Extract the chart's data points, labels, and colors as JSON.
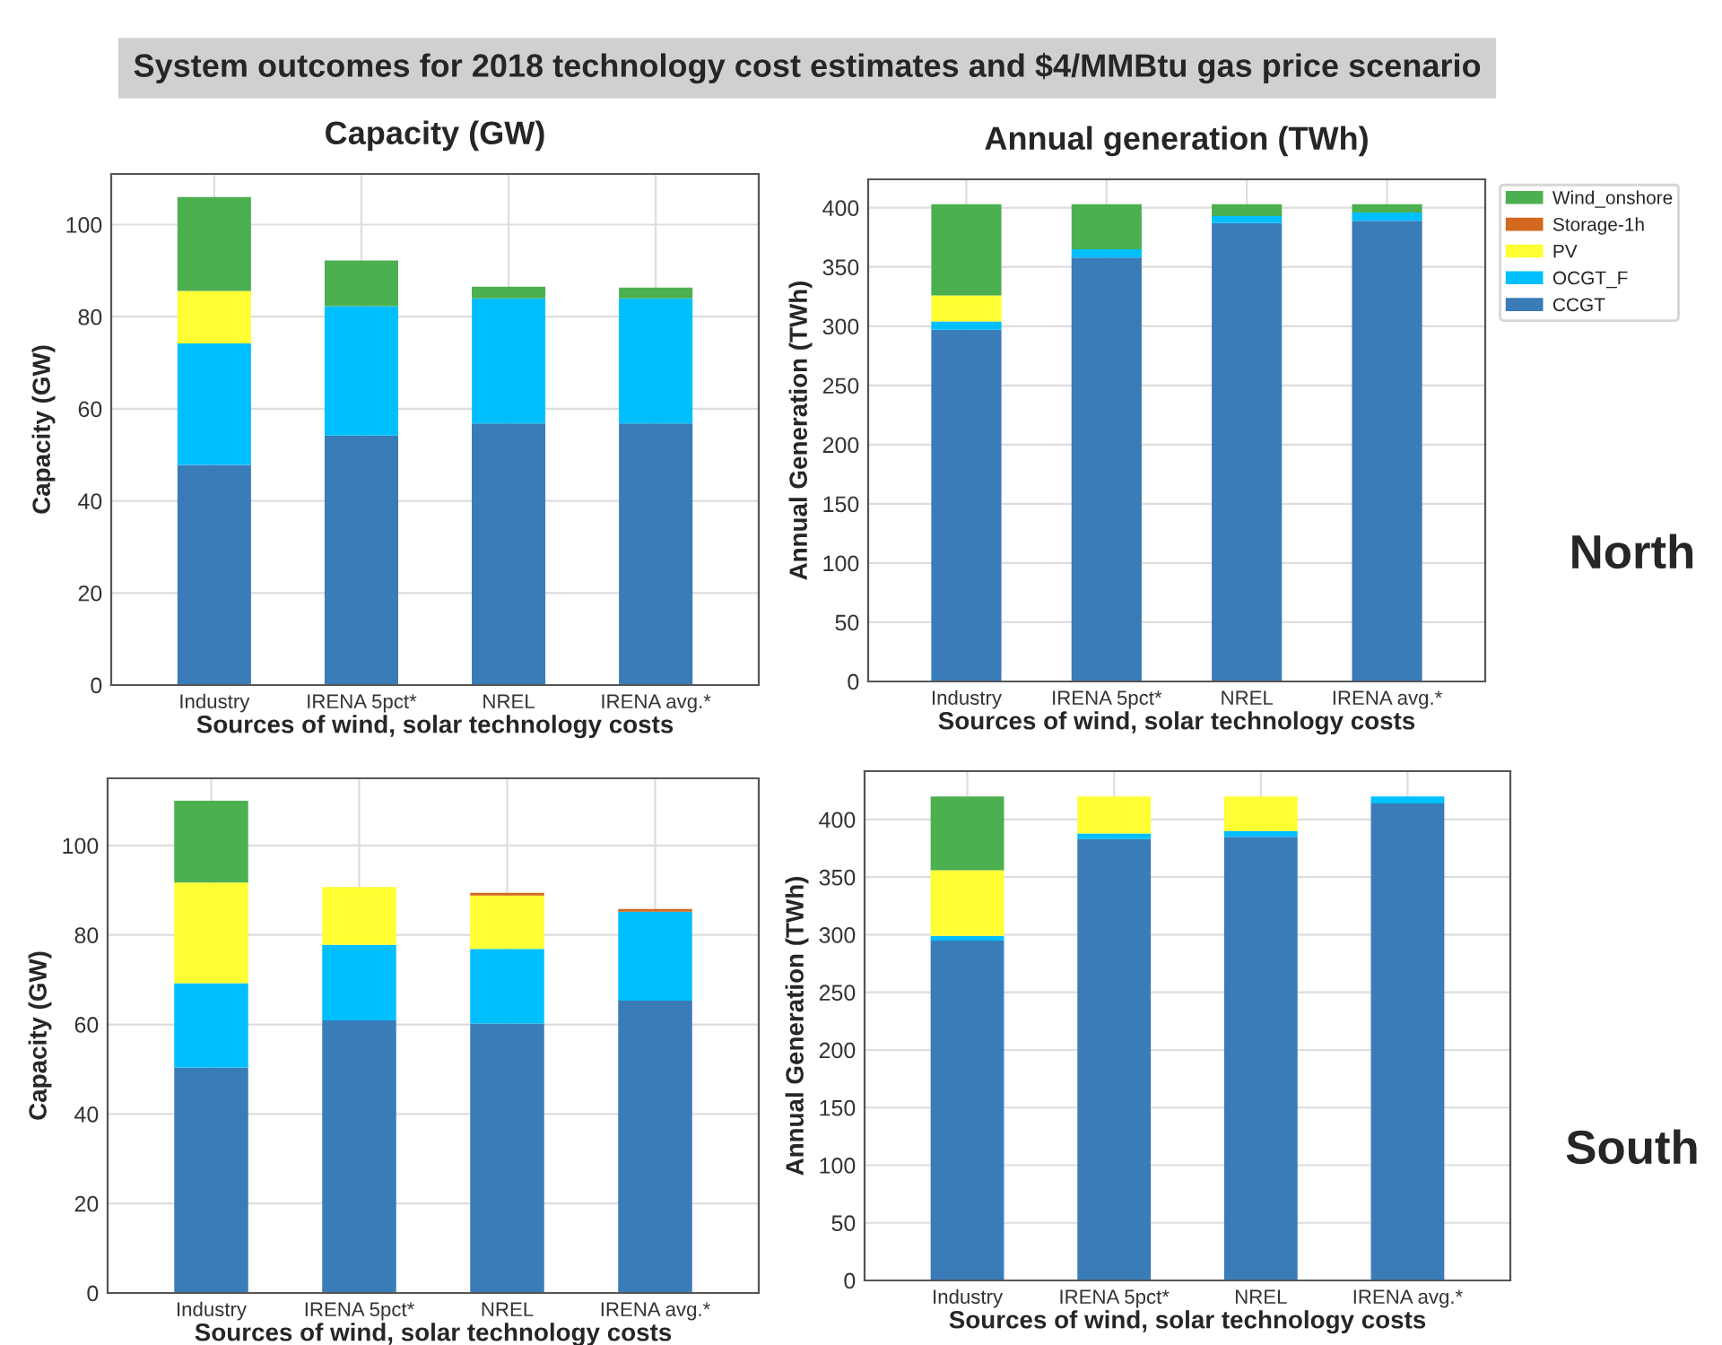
{
  "chart_data": [
    {
      "type": "bar",
      "stacked": true,
      "title": "Capacity (GW)",
      "annotations": [
        "System outcomes for 2018 technology cost estimates and $4/MMBtu gas price scenario"
      ],
      "xlabel": "Sources of wind, solar technology costs",
      "ylabel": "Capacity (GW)",
      "categories": [
        "Industry",
        "IRENA 5pct*",
        "NREL",
        "IRENA avg.*"
      ],
      "ylim": [
        0,
        111
      ],
      "yticks": [
        0,
        20,
        40,
        60,
        80,
        100
      ],
      "grid": true,
      "legend": false,
      "series": [
        {
          "color": "#3a7cb8",
          "values": [
            47.8,
            54.2,
            56.8,
            56.8
          ]
        },
        {
          "color": "#00bfff",
          "values": [
            26.4,
            28.1,
            27.2,
            27.2
          ]
        },
        {
          "color": "#ffff33",
          "values": [
            11.4,
            0,
            0,
            0
          ]
        },
        {
          "color": "#d2691e",
          "values": [
            0,
            0,
            0,
            0
          ]
        },
        {
          "color": "#4caf50",
          "values": [
            20.4,
            9.9,
            2.5,
            2.3
          ]
        }
      ]
    },
    {
      "type": "bar",
      "stacked": true,
      "title": "Annual generation (TWh)",
      "annotations": [
        "North"
      ],
      "xlabel": "Sources of wind, solar technology costs",
      "ylabel": "Annual Generation (TWh)",
      "categories": [
        "Industry",
        "IRENA 5pct*",
        "NREL",
        "IRENA avg.*"
      ],
      "ylim": [
        0,
        424
      ],
      "yticks": [
        0,
        50,
        100,
        150,
        200,
        250,
        300,
        350,
        400
      ],
      "grid": true,
      "legend": "right",
      "series": [
        {
          "name": "CCGT",
          "color": "#3a7cb8",
          "values": [
            297,
            358,
            387,
            389
          ]
        },
        {
          "name": "OCGT_F",
          "color": "#00bfff",
          "values": [
            7,
            7,
            6,
            7
          ]
        },
        {
          "name": "PV",
          "color": "#ffff33",
          "values": [
            22,
            0,
            0,
            0
          ]
        },
        {
          "name": "Storage-1h",
          "color": "#d2691e",
          "values": [
            0,
            0,
            0,
            0
          ]
        },
        {
          "name": "Wind_onshore",
          "color": "#4caf50",
          "values": [
            77,
            38,
            10,
            7
          ]
        }
      ]
    },
    {
      "type": "bar",
      "stacked": true,
      "xlabel": "Sources of wind, solar technology costs",
      "ylabel": "Capacity (GW)",
      "categories": [
        "Industry",
        "IRENA 5pct*",
        "NREL",
        "IRENA avg.*"
      ],
      "ylim": [
        0,
        115
      ],
      "yticks": [
        0,
        20,
        40,
        60,
        80,
        100
      ],
      "grid": true,
      "legend": false,
      "series": [
        {
          "color": "#3a7cb8",
          "values": [
            50.4,
            60.9,
            60.2,
            65.3
          ]
        },
        {
          "color": "#00bfff",
          "values": [
            18.8,
            16.9,
            16.7,
            19.9
          ]
        },
        {
          "color": "#ffff33",
          "values": [
            22.5,
            12.9,
            11.9,
            0
          ]
        },
        {
          "color": "#d2691e",
          "values": [
            0,
            0,
            0.6,
            0.6
          ]
        },
        {
          "color": "#4caf50",
          "values": [
            18.3,
            0,
            0,
            0
          ]
        }
      ]
    },
    {
      "type": "bar",
      "stacked": true,
      "annotations": [
        "South"
      ],
      "xlabel": "Sources of wind, solar technology costs",
      "ylabel": "Annual Generation (TWh)",
      "categories": [
        "Industry",
        "IRENA 5pct*",
        "NREL",
        "IRENA avg.*"
      ],
      "ylim": [
        0,
        442
      ],
      "yticks": [
        0,
        50,
        100,
        150,
        200,
        250,
        300,
        350,
        400
      ],
      "grid": true,
      "legend": false,
      "series": [
        {
          "color": "#3a7cb8",
          "values": [
            295,
            383,
            385,
            414
          ]
        },
        {
          "color": "#00bfff",
          "values": [
            4,
            5,
            5,
            6
          ]
        },
        {
          "color": "#ffff33",
          "values": [
            57,
            32,
            30,
            0
          ]
        },
        {
          "color": "#d2691e",
          "values": [
            0,
            0,
            0,
            0
          ]
        },
        {
          "color": "#4caf50",
          "values": [
            64,
            0,
            0,
            0
          ]
        }
      ]
    }
  ]
}
